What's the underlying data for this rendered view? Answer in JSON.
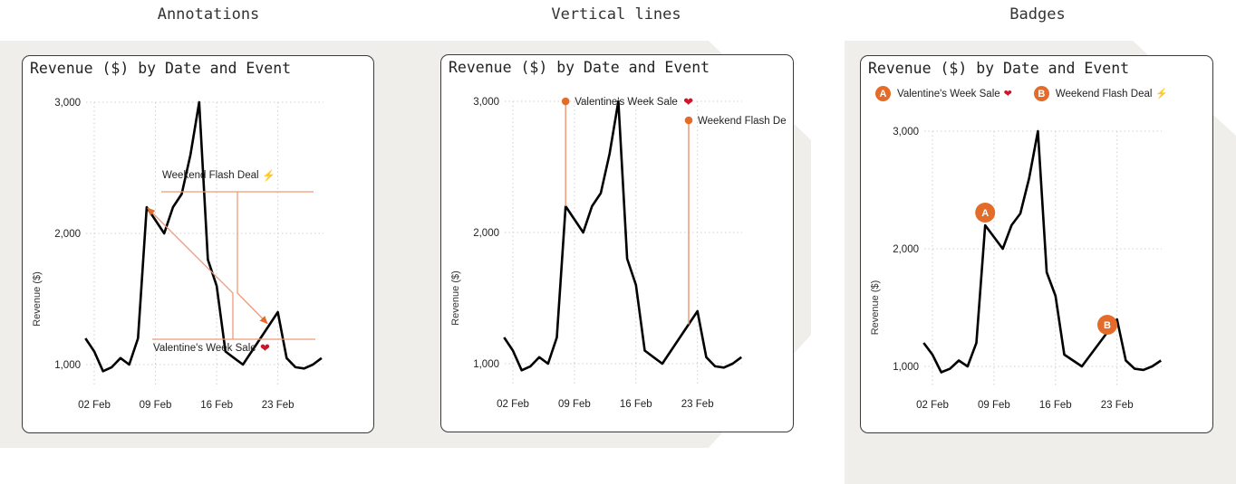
{
  "sections": [
    {
      "title": "Annotations"
    },
    {
      "title": "Vertical lines"
    },
    {
      "title": "Badges"
    }
  ],
  "card_title": "Revenue ($) by Date and Event",
  "y_axis_label": "Revenue ($)",
  "y_ticks": [
    "3,000",
    "2,000",
    "1,000"
  ],
  "x_ticks": [
    "02 Feb",
    "09 Feb",
    "16 Feb",
    "23 Feb"
  ],
  "events": [
    {
      "badge": "A",
      "label": "Valentine's Week Sale",
      "icon": "heart-icon",
      "glyph": "❤"
    },
    {
      "badge": "B",
      "label": "Weekend Flash Deal",
      "icon": "lightning-icon",
      "glyph": "⚡"
    }
  ],
  "vertical_lines_labels": [
    "Valentine's Week Sale",
    "Weekend Flash De"
  ],
  "colors": {
    "line": "#000000",
    "accent": "#e36c2a",
    "annotation_line": "#ef9f80",
    "grid": "#d0d0d0",
    "background": "#efeeeb"
  },
  "chart_data": [
    {
      "type": "line",
      "panel": "Annotations",
      "title": "Revenue ($) by Date and Event",
      "xlabel": "",
      "ylabel": "Revenue ($)",
      "x": [
        "01 Feb",
        "02 Feb",
        "03 Feb",
        "04 Feb",
        "05 Feb",
        "06 Feb",
        "07 Feb",
        "08 Feb",
        "09 Feb",
        "10 Feb",
        "11 Feb",
        "12 Feb",
        "13 Feb",
        "14 Feb",
        "15 Feb",
        "16 Feb",
        "17 Feb",
        "18 Feb",
        "19 Feb",
        "20 Feb",
        "21 Feb",
        "22 Feb",
        "23 Feb",
        "24 Feb",
        "25 Feb",
        "26 Feb",
        "27 Feb",
        "28 Feb"
      ],
      "series": [
        {
          "name": "Revenue",
          "values": [
            1200,
            1100,
            950,
            980,
            1050,
            1000,
            1200,
            2200,
            2100,
            2000,
            2200,
            2300,
            2600,
            3000,
            1800,
            1600,
            1100,
            1050,
            1000,
            1100,
            1200,
            1300,
            1400,
            1050,
            980,
            970,
            1000,
            1050
          ]
        }
      ],
      "ylim": [
        800,
        3000
      ],
      "grid": true,
      "annotations": [
        {
          "text": "Valentine's Week Sale",
          "target": "08 Feb",
          "value": 2200
        },
        {
          "text": "Weekend Flash Deal",
          "target": "22 Feb",
          "value": 1300
        }
      ]
    },
    {
      "type": "line",
      "panel": "Vertical lines",
      "title": "Revenue ($) by Date and Event",
      "ylabel": "Revenue ($)",
      "x": [
        "01 Feb",
        "02 Feb",
        "03 Feb",
        "04 Feb",
        "05 Feb",
        "06 Feb",
        "07 Feb",
        "08 Feb",
        "09 Feb",
        "10 Feb",
        "11 Feb",
        "12 Feb",
        "13 Feb",
        "14 Feb",
        "15 Feb",
        "16 Feb",
        "17 Feb",
        "18 Feb",
        "19 Feb",
        "20 Feb",
        "21 Feb",
        "22 Feb",
        "23 Feb",
        "24 Feb",
        "25 Feb",
        "26 Feb",
        "27 Feb",
        "28 Feb"
      ],
      "series": [
        {
          "name": "Revenue",
          "values": [
            1200,
            1100,
            950,
            980,
            1050,
            1000,
            1200,
            2200,
            2100,
            2000,
            2200,
            2300,
            2600,
            3000,
            1800,
            1600,
            1100,
            1050,
            1000,
            1100,
            1200,
            1300,
            1400,
            1050,
            980,
            970,
            1000,
            1050
          ]
        }
      ],
      "ylim": [
        800,
        3000
      ],
      "grid": true,
      "markers": [
        {
          "text": "Valentine's Week Sale",
          "x": "08 Feb",
          "from": 2200,
          "to": 3000
        },
        {
          "text": "Weekend Flash De",
          "x": "22 Feb",
          "from": 1300,
          "to": 2900
        }
      ]
    },
    {
      "type": "line",
      "panel": "Badges",
      "title": "Revenue ($) by Date and Event",
      "ylabel": "Revenue ($)",
      "x": [
        "01 Feb",
        "02 Feb",
        "03 Feb",
        "04 Feb",
        "05 Feb",
        "06 Feb",
        "07 Feb",
        "08 Feb",
        "09 Feb",
        "10 Feb",
        "11 Feb",
        "12 Feb",
        "13 Feb",
        "14 Feb",
        "15 Feb",
        "16 Feb",
        "17 Feb",
        "18 Feb",
        "19 Feb",
        "20 Feb",
        "21 Feb",
        "22 Feb",
        "23 Feb",
        "24 Feb",
        "25 Feb",
        "26 Feb",
        "27 Feb",
        "28 Feb"
      ],
      "series": [
        {
          "name": "Revenue",
          "values": [
            1200,
            1100,
            950,
            980,
            1050,
            1000,
            1200,
            2200,
            2100,
            2000,
            2200,
            2300,
            2600,
            3000,
            1800,
            1600,
            1100,
            1050,
            1000,
            1100,
            1200,
            1300,
            1400,
            1050,
            980,
            970,
            1000,
            1050
          ]
        }
      ],
      "ylim": [
        800,
        3000
      ],
      "grid": true,
      "badges": [
        {
          "label": "A",
          "x": "08 Feb",
          "value": 2200
        },
        {
          "label": "B",
          "x": "22 Feb",
          "value": 1300
        }
      ],
      "legend": [
        "A Valentine's Week Sale",
        "B Weekend Flash Deal"
      ],
      "legend_position": "top"
    }
  ]
}
